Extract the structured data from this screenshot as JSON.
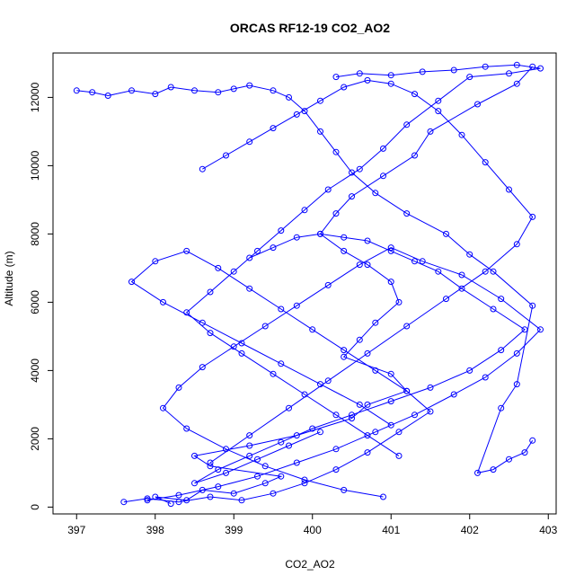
{
  "colors": {
    "series": "#0000ff",
    "axis": "#000000",
    "background": "#ffffff"
  },
  "chart_data": {
    "type": "line",
    "title": "ORCAS RF12-19 CO2_AO2",
    "xlabel": "CO2_AO2",
    "ylabel": "Altitude (m)",
    "xlim": [
      396.7,
      403.1
    ],
    "ylim": [
      -200,
      13300
    ],
    "xticks": [
      397,
      398,
      399,
      400,
      401,
      402,
      403
    ],
    "yticks": [
      0,
      2000,
      4000,
      6000,
      8000,
      10000,
      12000
    ],
    "grid": false,
    "markers": "open-circle",
    "series": [
      {
        "x": [
          398.2,
          398.0,
          398.4,
          398.6,
          399.0,
          399.4,
          399.6,
          398.7,
          398.5,
          399.2,
          399.8,
          400.5,
          400.7,
          401.2,
          401.0,
          400.4,
          400.6,
          400.8,
          401.1,
          401.0,
          400.7,
          400.4,
          400.1,
          400.3,
          400.5,
          400.9,
          401.3,
          401.5,
          402.1,
          402.6,
          402.8
        ],
        "y": [
          100,
          300,
          200,
          500,
          400,
          700,
          900,
          1200,
          1500,
          1800,
          2100,
          2600,
          3000,
          3400,
          3900,
          4400,
          4900,
          5400,
          6000,
          6600,
          7100,
          7500,
          8000,
          8600,
          9100,
          9700,
          10300,
          11000,
          11800,
          12400,
          12900
        ]
      },
      {
        "x": [
          402.8,
          402.7,
          402.5,
          402.3,
          402.1,
          402.4,
          402.6,
          402.8,
          402.3,
          402.0,
          401.7,
          401.2,
          400.8,
          400.5,
          400.3,
          400.1,
          399.9,
          399.7,
          399.5,
          399.2,
          399.0,
          398.8,
          398.5,
          398.2,
          398.0,
          397.7,
          397.4,
          397.2,
          397.0
        ],
        "y": [
          1950,
          1600,
          1400,
          1100,
          1000,
          2900,
          3600,
          5900,
          6900,
          7400,
          8000,
          8600,
          9200,
          9800,
          10400,
          11000,
          11600,
          12000,
          12200,
          12350,
          12250,
          12150,
          12200,
          12300,
          12100,
          12200,
          12050,
          12150,
          12200
        ]
      },
      {
        "x": [
          397.9,
          398.3,
          398.8,
          399.3,
          399.8,
          400.3,
          400.8,
          401.3,
          401.8,
          402.2,
          402.6,
          402.9,
          402.4,
          401.9,
          401.4,
          401.0,
          400.6,
          400.2,
          399.8,
          399.4,
          399.0,
          398.6,
          398.3,
          398.1,
          398.4,
          398.9,
          399.4,
          399.9,
          400.4,
          400.9
        ],
        "y": [
          200,
          350,
          600,
          900,
          1300,
          1700,
          2200,
          2700,
          3300,
          3800,
          4500,
          5200,
          6100,
          6800,
          7200,
          7600,
          7100,
          6500,
          5900,
          5300,
          4700,
          4100,
          3500,
          2900,
          2300,
          1700,
          1200,
          800,
          500,
          300
        ]
      },
      {
        "x": [
          400.3,
          400.6,
          401.0,
          401.4,
          401.8,
          402.2,
          402.6,
          402.9,
          402.5,
          402.0,
          401.6,
          401.2,
          400.9,
          400.6,
          400.2,
          399.9,
          399.6,
          399.3,
          399.0,
          398.7,
          398.4,
          398.7,
          399.1,
          399.5,
          399.9,
          400.3,
          400.7,
          401.1
        ],
        "y": [
          12600,
          12700,
          12650,
          12750,
          12800,
          12900,
          12950,
          12850,
          12700,
          12600,
          11900,
          11200,
          10500,
          9900,
          9300,
          8700,
          8100,
          7500,
          6900,
          6300,
          5700,
          5100,
          4500,
          3900,
          3300,
          2700,
          2100,
          1500
        ]
      },
      {
        "x": [
          397.6,
          397.9,
          398.3,
          398.7,
          399.1,
          399.5,
          399.9,
          400.3,
          400.7,
          401.1,
          401.5,
          401.2,
          400.8,
          400.4,
          400.0,
          399.6,
          399.2,
          398.8,
          398.4,
          398.0,
          397.7,
          398.1,
          398.6,
          399.1,
          399.6,
          400.1,
          400.6,
          401.0
        ],
        "y": [
          150,
          250,
          150,
          300,
          200,
          400,
          700,
          1100,
          1600,
          2200,
          2800,
          3400,
          4000,
          4600,
          5200,
          5800,
          6400,
          7000,
          7500,
          7200,
          6600,
          6000,
          5400,
          4800,
          4200,
          3600,
          3000,
          2400
        ]
      },
      {
        "x": [
          399.2,
          399.5,
          399.8,
          400.1,
          400.4,
          400.7,
          401.0,
          401.3,
          401.6,
          401.9,
          402.3,
          402.7,
          402.4,
          402.0,
          401.5,
          401.0,
          400.5,
          400.0,
          399.6,
          399.2,
          398.8,
          398.5,
          398.9,
          399.3,
          399.7,
          400.1
        ],
        "y": [
          7300,
          7600,
          7900,
          8000,
          7900,
          7800,
          7500,
          7200,
          6900,
          6400,
          5800,
          5200,
          4600,
          4000,
          3500,
          3100,
          2700,
          2300,
          1900,
          1500,
          1100,
          700,
          1000,
          1400,
          1800,
          2200
        ]
      },
      {
        "x": [
          398.6,
          398.9,
          399.2,
          399.5,
          399.8,
          400.1,
          400.4,
          400.7,
          401.0,
          401.3,
          401.6,
          401.9,
          402.2,
          402.5,
          402.8,
          402.6,
          402.2,
          401.7,
          401.2,
          400.7,
          400.2,
          399.7,
          399.2,
          398.7
        ],
        "y": [
          9900,
          10300,
          10700,
          11100,
          11500,
          11900,
          12300,
          12500,
          12400,
          12100,
          11600,
          10900,
          10100,
          9300,
          8500,
          7700,
          6900,
          6100,
          5300,
          4500,
          3700,
          2900,
          2100,
          1300
        ]
      }
    ]
  }
}
